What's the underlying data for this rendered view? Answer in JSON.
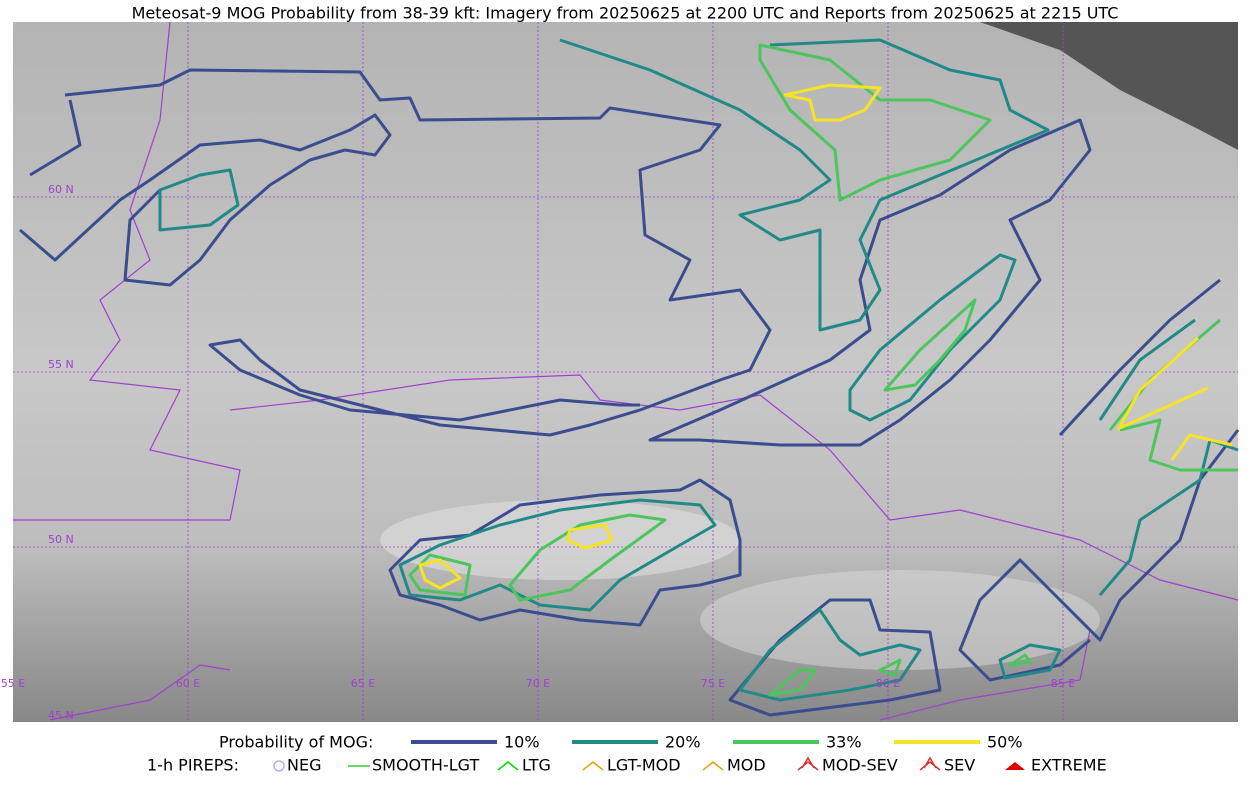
{
  "title": "Meteosat-9 MOG Probability from 38-39 kft: Imagery from 20250625 at 2200 UTC and Reports from 20250625 at 2215 UTC",
  "map": {
    "lat_labels": [
      "60 N",
      "55 N",
      "50 N",
      "45 N"
    ],
    "lon_labels": [
      "55 E",
      "60 E",
      "65 E",
      "70 E",
      "75 E",
      "80 E",
      "85 E"
    ]
  },
  "legend": {
    "probability_title": "Probability of MOG:",
    "probability_items": [
      {
        "label": "10%",
        "color": "#3b4d8f"
      },
      {
        "label": "20%",
        "color": "#218a86"
      },
      {
        "label": "33%",
        "color": "#4cc65c"
      },
      {
        "label": "50%",
        "color": "#f7e326"
      }
    ],
    "pireps_title": "1-h PIREPS:",
    "pirep_items": [
      "NEG",
      "SMOOTH-LGT",
      "LTG",
      "LGT-MOD",
      "MOD",
      "MOD-SEV",
      "SEV",
      "EXTREME"
    ]
  }
}
